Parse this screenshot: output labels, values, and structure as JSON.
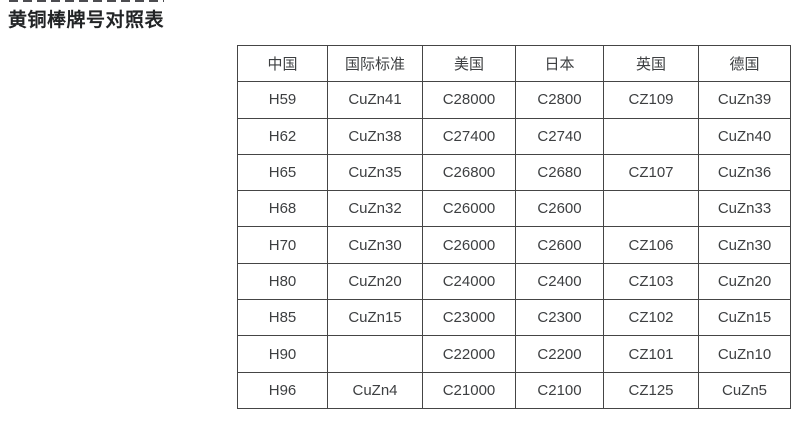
{
  "page": {
    "title": "黄铜棒牌号对照表"
  },
  "table": {
    "headers": [
      "中国",
      "国际标准",
      "美国",
      "日本",
      "英国",
      "德国"
    ],
    "rows": [
      [
        "H59",
        "CuZn41",
        "C28000",
        "C2800",
        "CZ109",
        "CuZn39"
      ],
      [
        "H62",
        "CuZn38",
        "C27400",
        "C2740",
        "",
        "CuZn40"
      ],
      [
        "H65",
        "CuZn35",
        "C26800",
        "C2680",
        "CZ107",
        "CuZn36"
      ],
      [
        "H68",
        "CuZn32",
        "C26000",
        "C2600",
        "",
        "CuZn33"
      ],
      [
        "H70",
        "CuZn30",
        "C26000",
        "C2600",
        "CZ106",
        "CuZn30"
      ],
      [
        "H80",
        "CuZn20",
        "C24000",
        "C2400",
        "CZ103",
        "CuZn20"
      ],
      [
        "H85",
        "CuZn15",
        "C23000",
        "C2300",
        "CZ102",
        "CuZn15"
      ],
      [
        "H90",
        "",
        "C22000",
        "C2200",
        "CZ101",
        "CuZn10"
      ],
      [
        "H96",
        "CuZn4",
        "C21000",
        "C2100",
        "CZ125",
        "CuZn5"
      ]
    ]
  },
  "colors": {
    "background": "#ffffff",
    "title_text": "#222426",
    "cell_text": "#3d3f41",
    "table_border": "#454545"
  }
}
